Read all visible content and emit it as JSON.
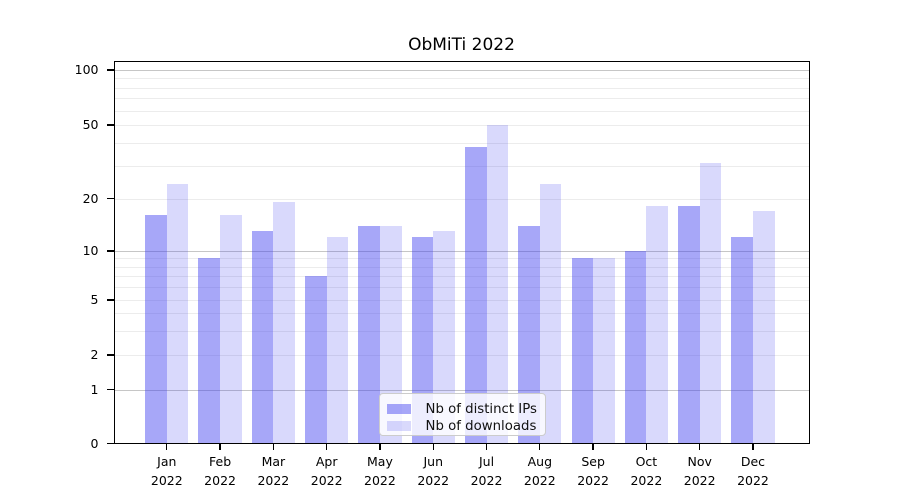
{
  "figure": {
    "title": "ObMiTi 2022",
    "background": "#ffffff"
  },
  "legend": {
    "items": [
      {
        "label": "Nb of distinct IPs",
        "color_key": "ips"
      },
      {
        "label": "Nb of downloads",
        "color_key": "downloads"
      }
    ]
  },
  "colors": {
    "ips": "rgba(64,64,240,0.46)",
    "downloads": "rgba(64,64,240,0.20)",
    "grid_strong": "#c6c6c6",
    "grid_weak": "#ececec",
    "axis": "#000000"
  },
  "axes": {
    "yticks": [
      0,
      1,
      2,
      5,
      10,
      20,
      50,
      100
    ],
    "strong_gridlines": [
      1,
      10,
      100
    ],
    "weak_gridlines": [
      2,
      3,
      4,
      5,
      6,
      7,
      8,
      9,
      20,
      30,
      40,
      50,
      60,
      70,
      80,
      90
    ]
  },
  "chart_data": {
    "type": "bar",
    "title": "ObMiTi 2022",
    "categories": [
      "Jan 2022",
      "Feb 2022",
      "Mar 2022",
      "Apr 2022",
      "May 2022",
      "Jun 2022",
      "Jul 2022",
      "Aug 2022",
      "Sep 2022",
      "Oct 2022",
      "Nov 2022",
      "Dec 2022"
    ],
    "series": [
      {
        "name": "Nb of distinct IPs",
        "values": [
          16,
          9,
          13,
          7,
          14,
          12,
          38,
          14,
          9,
          10,
          18,
          12
        ]
      },
      {
        "name": "Nb of downloads",
        "values": [
          24,
          16,
          19,
          12,
          14,
          13,
          50,
          24,
          9,
          18,
          31,
          17
        ]
      }
    ],
    "xlabel": "",
    "ylabel": "",
    "yscale": "log-like",
    "ylim": [
      0,
      100
    ],
    "yticks": [
      0,
      1,
      2,
      5,
      10,
      20,
      50,
      100
    ],
    "grid": true,
    "legend_position": "lower center"
  }
}
